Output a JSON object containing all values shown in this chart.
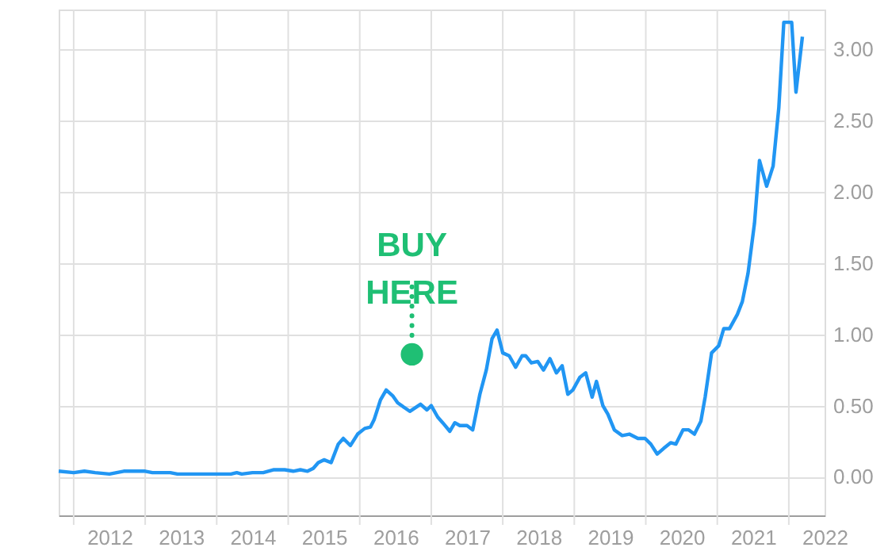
{
  "chart_data": {
    "type": "line",
    "x": [
      2011.29,
      2011.5,
      2011.65,
      2011.8,
      2012.0,
      2012.2,
      2012.5,
      2012.6,
      2012.85,
      2012.95,
      2013.5,
      2013.7,
      2013.78,
      2013.85,
      2014.0,
      2014.15,
      2014.3,
      2014.45,
      2014.57,
      2014.67,
      2014.77,
      2014.85,
      2014.92,
      2015.0,
      2015.1,
      2015.2,
      2015.27,
      2015.37,
      2015.47,
      2015.57,
      2015.65,
      2015.7,
      2015.79,
      2015.87,
      2015.96,
      2016.03,
      2016.2,
      2016.35,
      2016.44,
      2016.5,
      2016.59,
      2016.66,
      2016.76,
      2016.83,
      2016.9,
      2017.0,
      2017.08,
      2017.18,
      2017.27,
      2017.35,
      2017.42,
      2017.5,
      2017.59,
      2017.68,
      2017.77,
      2017.82,
      2017.9,
      2017.99,
      2018.07,
      2018.16,
      2018.25,
      2018.33,
      2018.41,
      2018.48,
      2018.58,
      2018.66,
      2018.75,
      2018.81,
      2018.9,
      2018.97,
      2019.06,
      2019.17,
      2019.27,
      2019.39,
      2019.49,
      2019.57,
      2019.66,
      2019.75,
      2019.85,
      2019.92,
      2020.02,
      2020.1,
      2020.18,
      2020.27,
      2020.33,
      2020.42,
      2020.52,
      2020.59,
      2020.67,
      2020.78,
      2020.85,
      2020.93,
      2021.02,
      2021.09,
      2021.19,
      2021.28,
      2021.36,
      2021.43,
      2021.54,
      2021.6,
      2021.69
    ],
    "series": [
      {
        "color": "#2196f3",
        "values": [
          0.04,
          0.03,
          0.04,
          0.03,
          0.02,
          0.04,
          0.04,
          0.03,
          0.03,
          0.02,
          0.02,
          0.02,
          0.03,
          0.02,
          0.03,
          0.03,
          0.05,
          0.05,
          0.04,
          0.05,
          0.04,
          0.06,
          0.1,
          0.12,
          0.1,
          0.23,
          0.27,
          0.22,
          0.3,
          0.34,
          0.35,
          0.4,
          0.54,
          0.61,
          0.57,
          0.52,
          0.46,
          0.51,
          0.47,
          0.5,
          0.42,
          0.38,
          0.32,
          0.38,
          0.36,
          0.36,
          0.33,
          0.58,
          0.75,
          0.97,
          1.03,
          0.87,
          0.85,
          0.77,
          0.85,
          0.85,
          0.8,
          0.81,
          0.75,
          0.83,
          0.73,
          0.78,
          0.58,
          0.61,
          0.7,
          0.73,
          0.56,
          0.67,
          0.5,
          0.44,
          0.33,
          0.29,
          0.3,
          0.27,
          0.27,
          0.23,
          0.16,
          0.2,
          0.24,
          0.23,
          0.33,
          0.33,
          0.3,
          0.39,
          0.56,
          0.87,
          0.92,
          1.04,
          1.04,
          1.14,
          1.23,
          1.43,
          1.78,
          2.22,
          2.04,
          2.18,
          2.59,
          3.19,
          3.19,
          2.7,
          3.09
        ]
      },
      {
        "type": "scatter",
        "marker": "circle",
        "color": "#1fbf74",
        "x": [
          2016.23
        ],
        "values": [
          0.86
        ]
      }
    ],
    "xlim": [
      2011.29,
      2022.0
    ],
    "xticks": [
      {
        "value": 2011.5,
        "label": null
      },
      {
        "value": 2012.5,
        "label": null
      },
      {
        "value": 2013.5,
        "label": null
      },
      {
        "value": 2014.5,
        "label": null
      },
      {
        "value": 2015.5,
        "label": null
      },
      {
        "value": 2016.5,
        "label": null
      },
      {
        "value": 2017.5,
        "label": null
      },
      {
        "value": 2018.5,
        "label": null
      },
      {
        "value": 2019.5,
        "label": null
      },
      {
        "value": 2020.5,
        "label": null
      },
      {
        "value": 2021.5,
        "label": null
      },
      2012,
      2013,
      2014,
      2015,
      2016,
      2017,
      2018,
      2019,
      2020,
      2021,
      2022
    ],
    "ylim": [
      -0.27,
      3.28
    ],
    "yticks": [
      {
        "value": 0,
        "label": "0.00"
      },
      {
        "value": 0.5,
        "label": "0.50"
      },
      {
        "value": 1,
        "label": "1.00"
      },
      {
        "value": 1.5,
        "label": "1.50"
      },
      {
        "value": 2,
        "label": "2.00"
      },
      {
        "value": 2.5,
        "label": "2.50"
      },
      {
        "value": 3,
        "label": "3.00"
      }
    ],
    "grid": true,
    "legend": false,
    "marker": "none",
    "line_style": "solid",
    "annotations": [
      {
        "text": "BUY HERE",
        "x": 2016.23,
        "y": 0.86
      }
    ]
  }
}
